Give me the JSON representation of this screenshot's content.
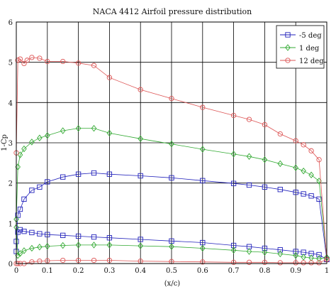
{
  "chart_data": {
    "type": "line",
    "title": "NACA 4412 Airfoil pressure distribution",
    "xlabel": "(x/c)",
    "ylabel": "1-Cp",
    "xlim": [
      0,
      1
    ],
    "ylim": [
      0,
      6
    ],
    "x_ticks": [
      "0",
      "0.1",
      "0.2",
      "0.3",
      "0.4",
      "0.5",
      "0.6",
      "0.7",
      "0.8",
      "0.9",
      "1"
    ],
    "y_ticks": [
      "0",
      "1",
      "2",
      "3",
      "4",
      "5",
      "6"
    ],
    "grid": true,
    "legend_position": "top-right",
    "series": [
      {
        "name": "-5 deg",
        "color": "#2222bb",
        "marker": "square",
        "x": [
          0.0,
          0.005,
          0.0125,
          0.025,
          0.05,
          0.075,
          0.1,
          0.15,
          0.2,
          0.25,
          0.3,
          0.4,
          0.5,
          0.6,
          0.7,
          0.75,
          0.8,
          0.85,
          0.9,
          0.925,
          0.95,
          0.975,
          1.0,
          1.0,
          0.975,
          0.95,
          0.925,
          0.9,
          0.85,
          0.8,
          0.75,
          0.7,
          0.6,
          0.5,
          0.4,
          0.3,
          0.25,
          0.2,
          0.15,
          0.1,
          0.075,
          0.05,
          0.025,
          0.0125,
          0.005,
          0.0
        ],
        "y": [
          0.55,
          1.2,
          1.35,
          1.6,
          1.82,
          1.9,
          2.03,
          2.15,
          2.22,
          2.25,
          2.22,
          2.18,
          2.13,
          2.06,
          1.99,
          1.95,
          1.9,
          1.84,
          1.77,
          1.73,
          1.68,
          1.6,
          0.1,
          0.1,
          0.22,
          0.25,
          0.28,
          0.3,
          0.34,
          0.38,
          0.42,
          0.45,
          0.52,
          0.56,
          0.6,
          0.64,
          0.66,
          0.68,
          0.7,
          0.72,
          0.74,
          0.77,
          0.8,
          0.84,
          0.78,
          0.3
        ]
      },
      {
        "name": "1 deg",
        "color": "#33aa33",
        "marker": "diamond",
        "x": [
          0.0,
          0.005,
          0.0125,
          0.025,
          0.05,
          0.075,
          0.1,
          0.15,
          0.2,
          0.25,
          0.3,
          0.4,
          0.5,
          0.6,
          0.7,
          0.75,
          0.8,
          0.85,
          0.9,
          0.925,
          0.95,
          0.975,
          1.0,
          1.0,
          0.975,
          0.95,
          0.925,
          0.9,
          0.85,
          0.8,
          0.75,
          0.7,
          0.6,
          0.5,
          0.4,
          0.3,
          0.25,
          0.2,
          0.15,
          0.1,
          0.075,
          0.05,
          0.025,
          0.0125,
          0.005,
          0.0
        ],
        "y": [
          1.1,
          2.4,
          2.7,
          2.85,
          3.02,
          3.12,
          3.18,
          3.3,
          3.36,
          3.36,
          3.24,
          3.1,
          2.97,
          2.84,
          2.72,
          2.66,
          2.58,
          2.48,
          2.38,
          2.3,
          2.2,
          2.05,
          0.15,
          0.15,
          0.12,
          0.14,
          0.16,
          0.2,
          0.24,
          0.28,
          0.3,
          0.33,
          0.38,
          0.42,
          0.44,
          0.46,
          0.46,
          0.46,
          0.45,
          0.43,
          0.41,
          0.38,
          0.32,
          0.25,
          0.2,
          0.9
        ]
      },
      {
        "name": "12 deg",
        "color": "#dd5555",
        "marker": "circle",
        "x": [
          0.0,
          0.005,
          0.0125,
          0.025,
          0.035,
          0.05,
          0.075,
          0.1,
          0.15,
          0.2,
          0.25,
          0.3,
          0.4,
          0.5,
          0.6,
          0.7,
          0.75,
          0.8,
          0.85,
          0.9,
          0.925,
          0.95,
          0.975,
          1.0,
          1.0,
          0.975,
          0.95,
          0.925,
          0.9,
          0.85,
          0.8,
          0.75,
          0.7,
          0.6,
          0.5,
          0.4,
          0.3,
          0.25,
          0.2,
          0.15,
          0.1,
          0.075,
          0.05,
          0.025,
          0.0125,
          0.005,
          0.0
        ],
        "y": [
          2.75,
          5.05,
          5.08,
          4.97,
          5.05,
          5.12,
          5.1,
          5.02,
          5.02,
          4.98,
          4.92,
          4.62,
          4.32,
          4.1,
          3.88,
          3.68,
          3.58,
          3.45,
          3.22,
          3.05,
          2.95,
          2.8,
          2.58,
          0.1,
          0.1,
          0.02,
          0.02,
          0.02,
          0.02,
          0.02,
          0.03,
          0.03,
          0.03,
          0.04,
          0.05,
          0.06,
          0.08,
          0.08,
          0.08,
          0.08,
          0.07,
          0.06,
          0.04,
          0.0,
          0.0,
          0.0,
          0.0
        ]
      }
    ]
  }
}
